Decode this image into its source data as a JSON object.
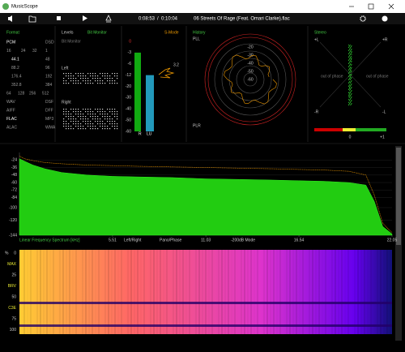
{
  "window": {
    "title": "MusicScope"
  },
  "toolbar": {
    "elapsed": "0:08:53",
    "separator": "/",
    "duration": "0:10:04",
    "track": "06 Streets Of Rage (Feat. Omari Clarke).flac"
  },
  "format": {
    "title": "Format",
    "rows": [
      [
        "PCM",
        "DSD"
      ],
      [
        "16",
        "24",
        "32",
        "1"
      ],
      [
        "44.1",
        "48"
      ],
      [
        "88.2",
        "96"
      ],
      [
        "176.4",
        "192"
      ],
      [
        "352.8",
        "384"
      ],
      [
        "64",
        "128",
        "256",
        "512"
      ],
      [
        "WAV",
        "DSF"
      ],
      [
        "AIFF",
        "DFF"
      ],
      [
        "FLAC",
        "MP3"
      ],
      [
        "ALAC",
        "WMA"
      ]
    ]
  },
  "levels": {
    "title": "Levels",
    "mode": "Bit Monitor",
    "subtitle": "Bit Monitor",
    "left": "Left",
    "right": "Right"
  },
  "meter": {
    "scale": [
      "0",
      "-3",
      "-6",
      "-12",
      "-20",
      "-30",
      "-40",
      "-50",
      "-60"
    ],
    "mode": "S-Mode",
    "reading": "3.2",
    "channel_r": "R",
    "channel_lu": "LU",
    "left_db": -3,
    "right_db": -12
  },
  "history": {
    "title": "History",
    "pll": "PLL",
    "plr": "PLR",
    "rings": [
      "-20",
      "-30",
      "-40",
      "-50",
      "-60"
    ]
  },
  "stereo": {
    "title": "Stereo",
    "pl": "+L",
    "pr": "+R",
    "mr": "-R",
    "ml": "-L",
    "phase_left": "out of phase",
    "phase_right": "out of phase",
    "corr_zero": "0",
    "corr_one": "+1"
  },
  "spectrum": {
    "x_label": "Linear Frequency Spectrum [kHz]",
    "mode_lr": "Left/Right",
    "mode_pp": "Pano/Phase",
    "mode_db": "-200dB Mode",
    "xlim": [
      0,
      22.05
    ],
    "xticks": [
      5.51,
      11.03,
      16.54,
      22.05
    ],
    "ylim": [
      -12,
      -144
    ],
    "yticks": [
      -24,
      -36,
      -48,
      -60,
      -72,
      -84,
      -100,
      -120,
      -144
    ],
    "freq_khz": [
      0,
      0.3,
      0.8,
      1.5,
      2.5,
      4,
      5.5,
      7,
      9,
      11,
      13,
      15,
      16.5,
      18,
      19.5,
      20.5,
      21,
      21.5,
      22.05
    ],
    "level_db": [
      -22,
      -26,
      -32,
      -38,
      -44,
      -48,
      -50,
      -51,
      -52,
      -54,
      -55,
      -56,
      -57,
      -58,
      -60,
      -64,
      -90,
      -130,
      -142
    ],
    "peak_db": [
      -18,
      -22,
      -25,
      -28,
      -30,
      -32,
      -33,
      -34,
      -35,
      -36,
      -37,
      -38,
      -39,
      -40,
      -42,
      -48,
      -80,
      -125,
      -140
    ]
  },
  "spectrogram": {
    "labels": [
      "%",
      "0",
      "MAX",
      "25",
      "BRV",
      "50",
      "C3E",
      "75",
      "100"
    ]
  }
}
